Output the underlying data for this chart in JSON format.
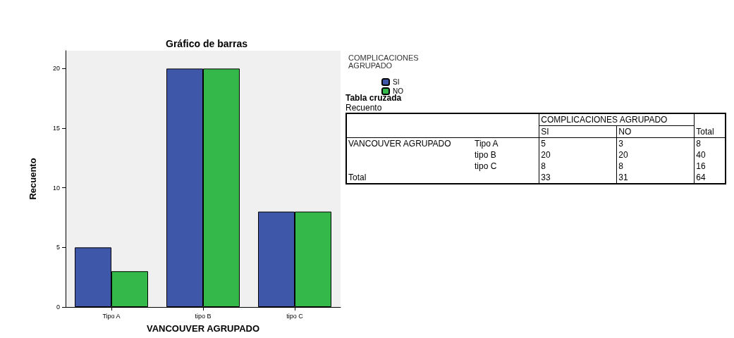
{
  "chart_data": [
    {
      "type": "bar",
      "title": "Gráfico de barras",
      "xlabel": "VANCOUVER AGRUPADO",
      "ylabel": "Recuento",
      "legend_title": "COMPLICACIONES AGRUPADO",
      "legend": "right",
      "categories": [
        "Tipo A",
        "tipo B",
        "tipo C"
      ],
      "ylim": [
        0,
        21.5
      ],
      "yticks": [
        0,
        5,
        10,
        15,
        20
      ],
      "series": [
        {
          "name": "SI",
          "color": "#3f57a8",
          "values": [
            5,
            20,
            8
          ]
        },
        {
          "name": "NO",
          "color": "#35b84a",
          "values": [
            3,
            20,
            8
          ]
        }
      ]
    },
    {
      "type": "other",
      "title": "Tabla cruzada",
      "subtitle": "Recuento",
      "xlabel": "COMPLICACIONES AGRUPADO",
      "ylabel": "VANCOUVER AGRUPADO",
      "categories": [
        "SI",
        "NO",
        "Total"
      ],
      "y_categories": [
        "Tipo A",
        "tipo B",
        "tipo C",
        "Total"
      ],
      "cell_labels": [
        [
          "5",
          "3",
          "8"
        ],
        [
          "20",
          "20",
          "40"
        ],
        [
          "8",
          "8",
          "16"
        ],
        [
          "33",
          "31",
          "64"
        ]
      ]
    }
  ]
}
